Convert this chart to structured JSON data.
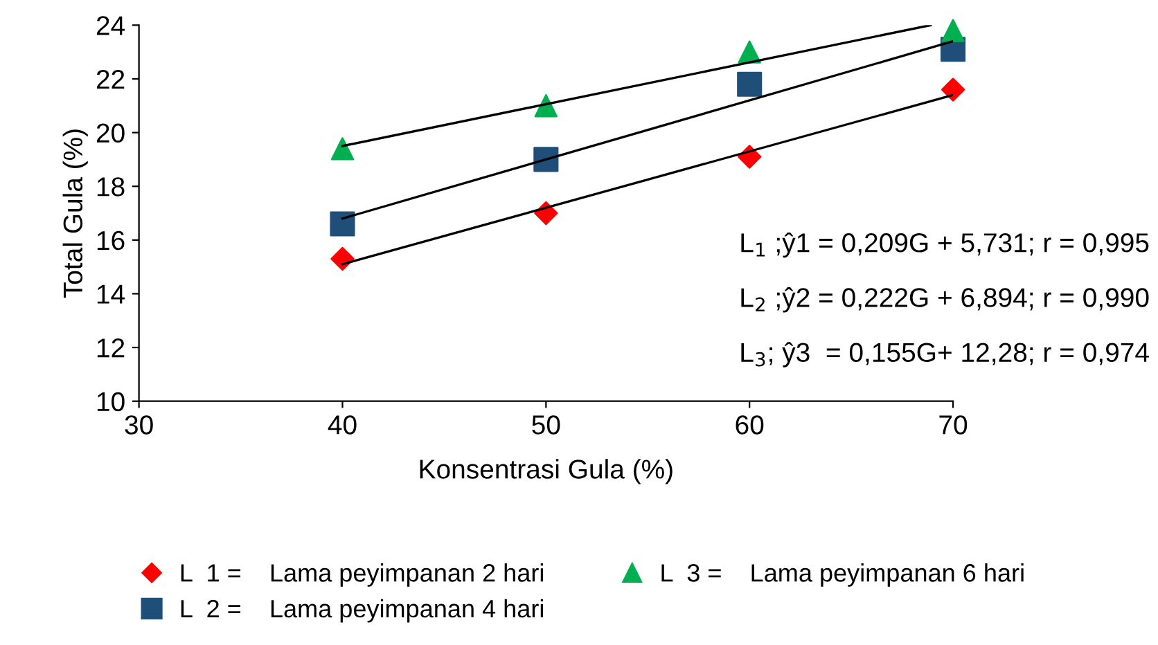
{
  "chart_data": {
    "type": "scatter",
    "xlabel": "Konsentrasi Gula (%)",
    "ylabel": "Total Gula (%)",
    "x": [
      40,
      50,
      60,
      70
    ],
    "series": [
      {
        "name": "L  1 =    Lama peyimpanan 2 hari",
        "color": "#ff0000",
        "marker": "diamond",
        "values": [
          15.3,
          17.0,
          19.1,
          21.6
        ]
      },
      {
        "name": "L  2 =    Lama peyimpanan 4 hari",
        "color": "#1f4e79",
        "marker": "square",
        "values": [
          16.6,
          19.0,
          21.8,
          23.1
        ]
      },
      {
        "name": "L  3 =    Lama peyimpanan 6 hari",
        "color": "#00b050",
        "marker": "triangle",
        "values": [
          19.4,
          21.0,
          23.0,
          23.8
        ]
      },
      {
        "type": "line",
        "color": "#000000",
        "marker": "none",
        "x": [
          40,
          70
        ],
        "values": [
          15.1,
          21.4
        ]
      },
      {
        "type": "line",
        "color": "#000000",
        "marker": "none",
        "x": [
          40,
          70
        ],
        "values": [
          16.8,
          23.4
        ]
      },
      {
        "type": "line",
        "color": "#000000",
        "marker": "none",
        "x": [
          40,
          68.9
        ],
        "values": [
          19.5,
          24.0
        ]
      }
    ],
    "xlim": [
      30,
      70
    ],
    "xticks": [
      30,
      40,
      50,
      60,
      70
    ],
    "ylim": [
      10,
      24
    ],
    "yticks": [
      10,
      12,
      14,
      16,
      18,
      20,
      22,
      24
    ],
    "grid": false,
    "legend": "bottom",
    "annotations": [
      "L$_{1}$ ;ŷ1 = 0,209G + 5,731; r = 0,995",
      "L$_{2}$ ;ŷ2 = 0,222G + 6,894; r = 0,990",
      "L$_{3}$; ŷ3  = 0,155G+ 12,28; r = 0,974"
    ]
  }
}
